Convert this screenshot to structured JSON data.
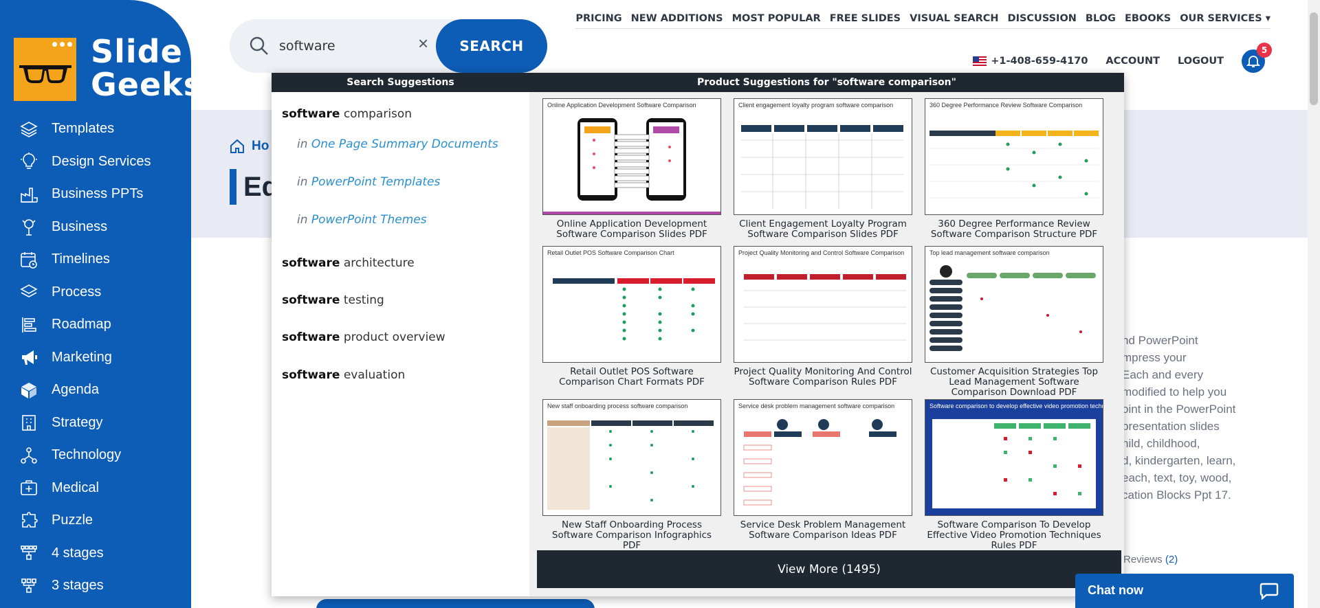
{
  "brand": {
    "line1": "Slide",
    "line2": "Geeks"
  },
  "sidebar": {
    "items": [
      {
        "label": "Templates",
        "icon": "stack-icon"
      },
      {
        "label": "Design Services",
        "icon": "lightbulb-icon"
      },
      {
        "label": "Business PPTs",
        "icon": "factory-icon"
      },
      {
        "label": "Business",
        "icon": "tree-icon"
      },
      {
        "label": "Timelines",
        "icon": "calendar-icon"
      },
      {
        "label": "Process",
        "icon": "layers-icon"
      },
      {
        "label": "Roadmap",
        "icon": "roadmap-icon"
      },
      {
        "label": "Marketing",
        "icon": "megaphone-icon"
      },
      {
        "label": "Agenda",
        "icon": "cube-icon"
      },
      {
        "label": "Strategy",
        "icon": "building-icon"
      },
      {
        "label": "Technology",
        "icon": "network-icon"
      },
      {
        "label": "Medical",
        "icon": "medical-kit-icon"
      },
      {
        "label": "Puzzle",
        "icon": "puzzle-icon"
      },
      {
        "label": "4 stages",
        "icon": "hierarchy-icon"
      },
      {
        "label": "3 stages",
        "icon": "hierarchy-icon"
      }
    ]
  },
  "search": {
    "value": "software",
    "clear": "×",
    "button": "SEARCH"
  },
  "topnav": {
    "links": [
      "PRICING",
      "NEW ADDITIONS",
      "MOST POPULAR",
      "FREE SLIDES",
      "VISUAL SEARCH",
      "DISCUSSION",
      "BLOG",
      "EBOOKS",
      "OUR SERVICES ▾"
    ],
    "phone": "+1-408-659-4170",
    "account": "ACCOUNT",
    "logout": "LOGOUT",
    "notifications": "5"
  },
  "background": {
    "breadcrumb": "Ho",
    "title": "Ed",
    "description_lines": [
      "nd PowerPoint",
      "mpress your",
      "Each and every",
      "modified to help you",
      "oint in the PowerPoint",
      "presentation slides",
      "hild, childhood,",
      "d, kindergarten, learn,",
      "each, text, toy, wood,",
      "cation Blocks Ppt 17."
    ],
    "reviews_label": "Reviews",
    "reviews_count": "(2)"
  },
  "dropdown": {
    "search_header": "Search Suggestions",
    "product_header": "Product Suggestions for \"software comparison\"",
    "suggestions": [
      {
        "bold": "software",
        "rest": " comparison"
      },
      {
        "bold": "software",
        "rest": " architecture"
      },
      {
        "bold": "software",
        "rest": " testing"
      },
      {
        "bold": "software",
        "rest": " product overview"
      },
      {
        "bold": "software",
        "rest": " evaluation"
      }
    ],
    "sub_prefix": "in",
    "sub_suggestions": [
      "One Page Summary Documents",
      "PowerPoint Templates",
      "PowerPoint Themes"
    ],
    "products": [
      {
        "caption": "Online Application Development Software Comparison Slides PDF",
        "thumb_title": "Online Application Development Software Comparison",
        "style": "phones"
      },
      {
        "caption": "Client Engagement Loyalty Program Software Comparison Slides PDF",
        "thumb_title": "Client engagement loyalty program software comparison",
        "style": "table-dark"
      },
      {
        "caption": "360 Degree Performance Review Software Comparison Structure PDF",
        "thumb_title": "360 Degree Performance Review Software Comparison",
        "style": "table-yellow"
      },
      {
        "caption": "Retail Outlet POS Software Comparison Chart Formats PDF",
        "thumb_title": "Retail Outlet POS Software Comparison Chart",
        "style": "table-red"
      },
      {
        "caption": "Project Quality Monitoring And Control Software Comparison Rules PDF",
        "thumb_title": "Project Quality Monitoring and Control Software Comparison",
        "style": "table-red2"
      },
      {
        "caption": "Customer Acquisition Strategies Top Lead Management Software Comparison Download PDF",
        "thumb_title": "Top lead management software comparison",
        "style": "table-green"
      },
      {
        "caption": "New Staff Onboarding Process Software Comparison Infographics PDF",
        "thumb_title": "New staff onboarding process software comparison",
        "style": "table-tan"
      },
      {
        "caption": "Service Desk Problem Management Software Comparison Ideas PDF",
        "thumb_title": "Service desk problem management software comparison",
        "style": "table-navy"
      },
      {
        "caption": "Software Comparison To Develop Effective Video Promotion Techniques Rules PDF",
        "thumb_title": "Software comparison to develop effective video promotion techniques",
        "style": "blue"
      }
    ],
    "view_more": "View More (1495)"
  },
  "chat": {
    "label": "Chat now"
  },
  "colors": {
    "brand_blue": "#0d5cb6",
    "logo_orange": "#f4a41b",
    "dark": "#1f2730",
    "badge_red": "#e8334a"
  }
}
